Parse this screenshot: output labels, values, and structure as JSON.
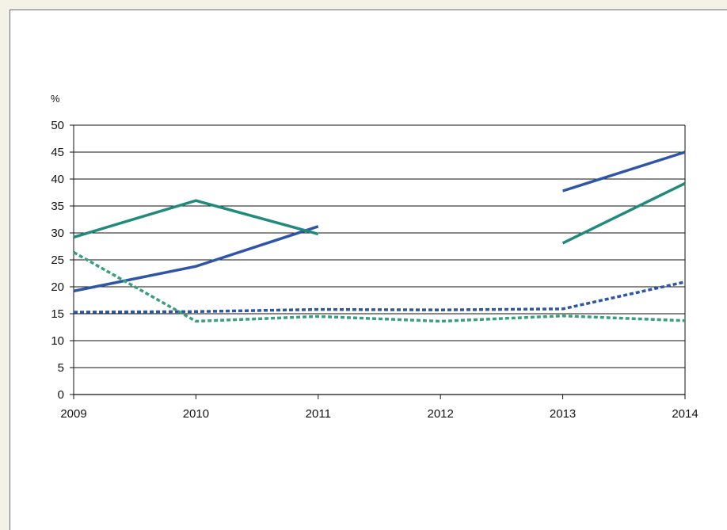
{
  "chart_data": {
    "type": "line",
    "title": "",
    "xlabel": "",
    "ylabel": "%",
    "x": [
      2009,
      2010,
      2011,
      2012,
      2013,
      2014
    ],
    "x_tick_labels": [
      "2009",
      "2010",
      "2011",
      "2012",
      "2013",
      "2014"
    ],
    "ylim": [
      0,
      50
    ],
    "y_tick_labels": [
      "0",
      "5",
      "10",
      "15",
      "20",
      "25",
      "30",
      "35",
      "40",
      "45",
      "50"
    ],
    "grid": "horizontal",
    "legend": "none",
    "series": [
      {
        "color": "#2e55a8",
        "style": "solid",
        "values": [
          19.2,
          23.8,
          31.2,
          null,
          37.8,
          45
        ]
      },
      {
        "color": "#218a7c",
        "style": "solid",
        "values": [
          29.2,
          36.0,
          29.8,
          null,
          28.1,
          39.2
        ]
      },
      {
        "color": "#2e55a8",
        "style": "dotted",
        "values": [
          15.3,
          15.4,
          15.8,
          15.7,
          15.9,
          20.9
        ]
      },
      {
        "color": "#3aa07a",
        "style": "dotted",
        "values": [
          26.4,
          13.6,
          14.5,
          13.6,
          14.6,
          13.7
        ]
      }
    ]
  }
}
